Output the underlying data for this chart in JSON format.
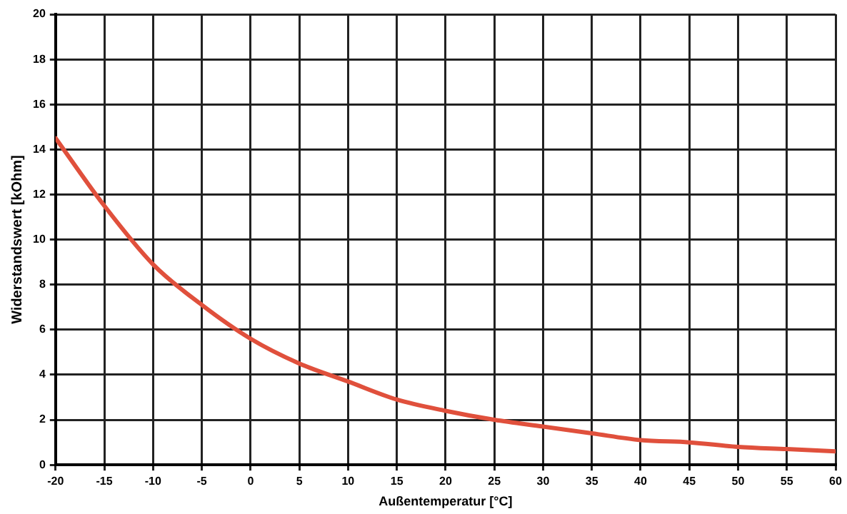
{
  "chart_data": {
    "type": "line",
    "xlabel": "Außentemperatur [°C]",
    "ylabel": "Widerstandswert [kOhm]",
    "x": [
      -20,
      -15,
      -10,
      -5,
      0,
      5,
      10,
      15,
      20,
      25,
      30,
      35,
      40,
      45,
      50,
      55,
      60
    ],
    "series": [
      {
        "color": "#e0503c",
        "values": [
          14.5,
          11.5,
          8.9,
          7.1,
          5.6,
          4.5,
          3.7,
          2.9,
          2.4,
          2.0,
          1.7,
          1.4,
          1.1,
          1.0,
          0.8,
          0.7,
          0.6
        ]
      }
    ],
    "xlim": [
      -20,
      60
    ],
    "xticks": [
      -20,
      -15,
      -10,
      -5,
      0,
      5,
      10,
      15,
      20,
      25,
      30,
      35,
      40,
      45,
      50,
      55,
      60
    ],
    "ylim": [
      0,
      20
    ],
    "yticks": [
      0,
      2,
      4,
      6,
      8,
      10,
      12,
      14,
      16,
      18,
      20
    ],
    "grid": true,
    "legend": false,
    "marker": "none",
    "line_style": "solid"
  }
}
